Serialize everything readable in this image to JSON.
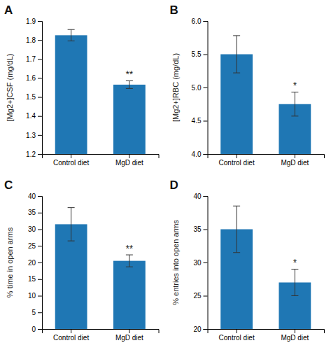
{
  "chart_data": [
    {
      "type": "bar",
      "title": "A",
      "ylabel": "[Mg2+]CSF (mg/dL)",
      "categories": [
        "Control diet",
        "MgD diet"
      ],
      "values": [
        1.825,
        1.565
      ],
      "errors": [
        0.03,
        0.02
      ],
      "ylim": [
        1.2,
        1.9
      ],
      "yticks": [
        1.2,
        1.3,
        1.4,
        1.5,
        1.6,
        1.7,
        1.8,
        1.9
      ],
      "annotations": [
        null,
        "**"
      ]
    },
    {
      "type": "bar",
      "title": "B",
      "ylabel": "[Mg2+]RBC (mg/dL)",
      "categories": [
        "Control diet",
        "MgD diet"
      ],
      "values": [
        5.5,
        4.75
      ],
      "errors": [
        0.28,
        0.18
      ],
      "ylim": [
        4.0,
        6.0
      ],
      "yticks": [
        {
          "value": 4.0,
          "label": "4.0"
        },
        {
          "value": 4.5,
          "label": "4.5"
        },
        {
          "value": 5.0,
          "label": "5.0"
        },
        {
          "value": 5.5,
          "label": "5.5"
        },
        {
          "value": 6.0,
          "label": "6.0"
        }
      ],
      "annotations": [
        null,
        "*"
      ]
    },
    {
      "type": "bar",
      "title": "C",
      "ylabel": "% time in open arms",
      "categories": [
        "Control diet",
        "MgD diet"
      ],
      "values": [
        31.5,
        20.5
      ],
      "errors": [
        5.0,
        1.8
      ],
      "ylim": [
        0,
        40
      ],
      "yticks": [
        0,
        5,
        10,
        15,
        20,
        25,
        30,
        35,
        40
      ],
      "annotations": [
        null,
        "**"
      ]
    },
    {
      "type": "bar",
      "title": "D",
      "ylabel": "% entries into open arms",
      "categories": [
        "Control diet",
        "MgD diet"
      ],
      "values": [
        35.0,
        27.0
      ],
      "errors": [
        3.5,
        2.0
      ],
      "ylim": [
        20,
        40
      ],
      "yticks": [
        20,
        25,
        30,
        35,
        40
      ],
      "annotations": [
        null,
        "*"
      ]
    }
  ]
}
